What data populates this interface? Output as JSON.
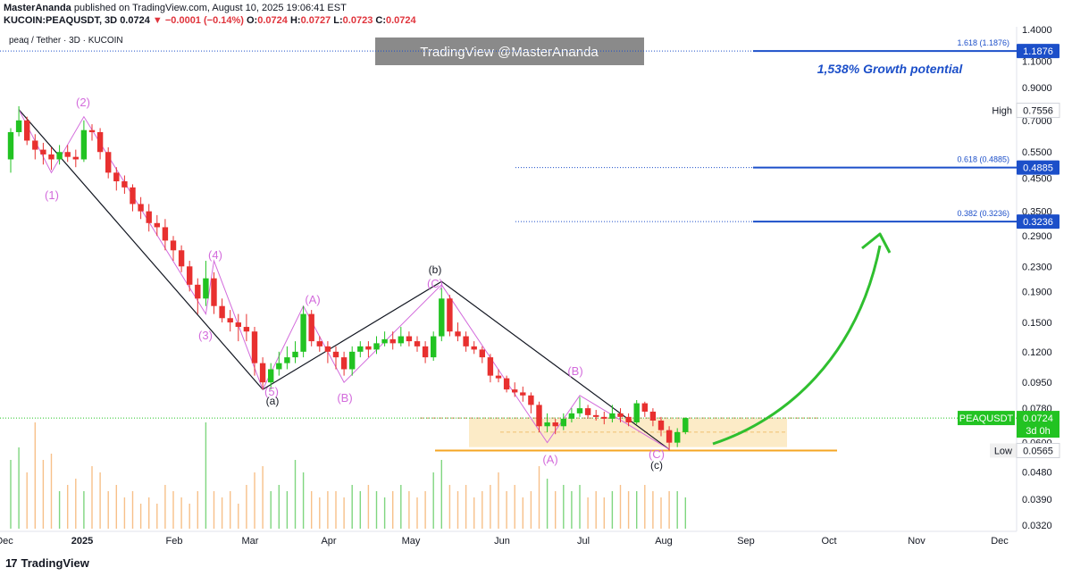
{
  "header": {
    "author": "MasterAnanda",
    "published_text": " published on TradingView.com, August 10, 2025 19:06:41 EST",
    "ticker_line": "KUCOIN:PEAQUSDT, 3D",
    "price": "0.0724",
    "change": "−0.0001 (−0.14%)",
    "o_label": "O:",
    "o_value": "0.0724",
    "h_label": "H:",
    "h_value": "0.0727",
    "l_label": "L:",
    "l_value": "0.0723",
    "c_label": "C:",
    "c_value": "0.0724"
  },
  "symbol_title": "peaq / Tether · 3D · KUCOIN",
  "watermark": "TradingView @MasterAnanda",
  "footer": {
    "brand": "TradingView"
  },
  "colors": {
    "up": "#22c322",
    "down": "#e8302f",
    "fib": "#1c4fc9",
    "wave": "#d36bdc",
    "arrow": "#2fbf2f",
    "zone": "#fbe7bd",
    "support": "#f5a623"
  },
  "chart_data": {
    "type": "candlestick",
    "scale": "log",
    "ylim": [
      0.032,
      1.4
    ],
    "y_ticks": [
      "1.4000",
      "1.1000",
      "0.9000",
      "0.7000",
      "0.5500",
      "0.4500",
      "0.3500",
      "0.2900",
      "0.2300",
      "0.1900",
      "0.1500",
      "0.1200",
      "0.0950",
      "0.0780",
      "0.0600",
      "0.0480",
      "0.0390",
      "0.0320"
    ],
    "x_ticks": [
      "Dec",
      "2025",
      "Feb",
      "Mar",
      "Apr",
      "May",
      "Jun",
      "Jul",
      "Aug",
      "Sep",
      "Oct",
      "Nov",
      "Dec"
    ],
    "fib_levels": [
      {
        "label": "1.618 (1.1876)",
        "value": 1.1876,
        "badge": "1.1876"
      },
      {
        "label": "0.618 (0.4885)",
        "value": 0.4885,
        "badge": "0.4885"
      },
      {
        "label": "0.382 (0.3236)",
        "value": 0.3236,
        "badge": "0.3236"
      }
    ],
    "high": {
      "label": "High",
      "value": "0.7556"
    },
    "low": {
      "label": "Low",
      "value": "0.0565"
    },
    "current": {
      "label": "PEAQUSDT",
      "value": "0.0724",
      "countdown": "3d 0h"
    },
    "growth_text": "1,538% Growth potential",
    "wave_labels": [
      "(1)",
      "(2)",
      "(3)",
      "(4)",
      "(5)",
      "(A)",
      "(B)",
      "(C)",
      "(A)",
      "(B)",
      "(C)"
    ],
    "abc_labels": [
      "(a)",
      "(b)",
      "(c)"
    ],
    "candles": [
      [
        0.52,
        0.64,
        0.66,
        0.47
      ],
      [
        0.64,
        0.7,
        0.78,
        0.62
      ],
      [
        0.7,
        0.6,
        0.72,
        0.58
      ],
      [
        0.6,
        0.56,
        0.63,
        0.52
      ],
      [
        0.56,
        0.54,
        0.59,
        0.5
      ],
      [
        0.54,
        0.52,
        0.57,
        0.48
      ],
      [
        0.52,
        0.55,
        0.58,
        0.5
      ],
      [
        0.55,
        0.53,
        0.58,
        0.51
      ],
      [
        0.53,
        0.52,
        0.56,
        0.49
      ],
      [
        0.52,
        0.65,
        0.7,
        0.51
      ],
      [
        0.65,
        0.64,
        0.68,
        0.6
      ],
      [
        0.64,
        0.55,
        0.66,
        0.52
      ],
      [
        0.55,
        0.47,
        0.57,
        0.45
      ],
      [
        0.47,
        0.44,
        0.49,
        0.41
      ],
      [
        0.44,
        0.42,
        0.46,
        0.4
      ],
      [
        0.42,
        0.37,
        0.43,
        0.35
      ],
      [
        0.37,
        0.35,
        0.39,
        0.33
      ],
      [
        0.35,
        0.32,
        0.37,
        0.3
      ],
      [
        0.32,
        0.31,
        0.34,
        0.29
      ],
      [
        0.31,
        0.28,
        0.33,
        0.26
      ],
      [
        0.28,
        0.26,
        0.29,
        0.24
      ],
      [
        0.26,
        0.23,
        0.27,
        0.22
      ],
      [
        0.23,
        0.2,
        0.24,
        0.19
      ],
      [
        0.2,
        0.18,
        0.21,
        0.16
      ],
      [
        0.18,
        0.21,
        0.24,
        0.17
      ],
      [
        0.21,
        0.17,
        0.22,
        0.16
      ],
      [
        0.17,
        0.155,
        0.18,
        0.15
      ],
      [
        0.155,
        0.15,
        0.165,
        0.14
      ],
      [
        0.15,
        0.145,
        0.16,
        0.13
      ],
      [
        0.145,
        0.14,
        0.16,
        0.13
      ],
      [
        0.14,
        0.11,
        0.145,
        0.1
      ],
      [
        0.11,
        0.095,
        0.115,
        0.09
      ],
      [
        0.095,
        0.105,
        0.11,
        0.09
      ],
      [
        0.105,
        0.11,
        0.12,
        0.1
      ],
      [
        0.11,
        0.115,
        0.125,
        0.105
      ],
      [
        0.115,
        0.12,
        0.13,
        0.11
      ],
      [
        0.12,
        0.16,
        0.17,
        0.115
      ],
      [
        0.16,
        0.13,
        0.165,
        0.125
      ],
      [
        0.13,
        0.125,
        0.135,
        0.12
      ],
      [
        0.125,
        0.12,
        0.13,
        0.11
      ],
      [
        0.12,
        0.115,
        0.125,
        0.105
      ],
      [
        0.115,
        0.105,
        0.12,
        0.1
      ],
      [
        0.105,
        0.12,
        0.125,
        0.1
      ],
      [
        0.12,
        0.125,
        0.13,
        0.115
      ],
      [
        0.125,
        0.122,
        0.13,
        0.115
      ],
      [
        0.122,
        0.128,
        0.135,
        0.118
      ],
      [
        0.128,
        0.132,
        0.14,
        0.125
      ],
      [
        0.132,
        0.128,
        0.14,
        0.122
      ],
      [
        0.128,
        0.135,
        0.145,
        0.125
      ],
      [
        0.135,
        0.13,
        0.14,
        0.125
      ],
      [
        0.13,
        0.125,
        0.135,
        0.12
      ],
      [
        0.125,
        0.115,
        0.13,
        0.11
      ],
      [
        0.115,
        0.135,
        0.14,
        0.112
      ],
      [
        0.135,
        0.18,
        0.195,
        0.13
      ],
      [
        0.18,
        0.14,
        0.185,
        0.135
      ],
      [
        0.14,
        0.135,
        0.15,
        0.13
      ],
      [
        0.135,
        0.125,
        0.14,
        0.12
      ],
      [
        0.125,
        0.122,
        0.13,
        0.118
      ],
      [
        0.122,
        0.115,
        0.125,
        0.11
      ],
      [
        0.115,
        0.1,
        0.118,
        0.095
      ],
      [
        0.1,
        0.098,
        0.105,
        0.095
      ],
      [
        0.098,
        0.09,
        0.1,
        0.088
      ],
      [
        0.09,
        0.088,
        0.095,
        0.085
      ],
      [
        0.088,
        0.086,
        0.092,
        0.082
      ],
      [
        0.086,
        0.08,
        0.088,
        0.075
      ],
      [
        0.08,
        0.068,
        0.082,
        0.065
      ],
      [
        0.068,
        0.07,
        0.075,
        0.065
      ],
      [
        0.07,
        0.068,
        0.072,
        0.064
      ],
      [
        0.068,
        0.072,
        0.075,
        0.066
      ],
      [
        0.072,
        0.075,
        0.078,
        0.07
      ],
      [
        0.075,
        0.078,
        0.085,
        0.073
      ],
      [
        0.078,
        0.074,
        0.08,
        0.072
      ],
      [
        0.074,
        0.073,
        0.077,
        0.071
      ],
      [
        0.073,
        0.072,
        0.076,
        0.069
      ],
      [
        0.072,
        0.075,
        0.08,
        0.07
      ],
      [
        0.075,
        0.073,
        0.078,
        0.07
      ],
      [
        0.073,
        0.07,
        0.075,
        0.068
      ],
      [
        0.07,
        0.081,
        0.083,
        0.069
      ],
      [
        0.081,
        0.076,
        0.082,
        0.073
      ],
      [
        0.076,
        0.071,
        0.078,
        0.068
      ],
      [
        0.071,
        0.066,
        0.073,
        0.063
      ],
      [
        0.066,
        0.06,
        0.068,
        0.0565
      ],
      [
        0.06,
        0.065,
        0.067,
        0.058
      ],
      [
        0.065,
        0.0724,
        0.0727,
        0.064
      ]
    ],
    "volumes": [
      0.55,
      0.65,
      0.45,
      0.85,
      0.55,
      0.6,
      0.3,
      0.35,
      0.4,
      0.3,
      0.5,
      0.45,
      0.3,
      0.35,
      0.25,
      0.3,
      0.2,
      0.25,
      0.2,
      0.35,
      0.3,
      0.25,
      0.2,
      0.3,
      0.85,
      0.3,
      0.25,
      0.3,
      0.2,
      0.35,
      0.45,
      0.5,
      0.3,
      0.35,
      0.3,
      0.55,
      0.45,
      0.3,
      0.25,
      0.3,
      0.3,
      0.25,
      0.35,
      0.3,
      0.35,
      0.3,
      0.25,
      0.3,
      0.35,
      0.3,
      0.25,
      0.3,
      0.45,
      0.55,
      0.35,
      0.3,
      0.35,
      0.25,
      0.3,
      0.35,
      0.45,
      0.3,
      0.35,
      0.25,
      0.3,
      0.5,
      0.4,
      0.3,
      0.35,
      0.3,
      0.35,
      0.25,
      0.3,
      0.25,
      0.3,
      0.35,
      0.3,
      0.3,
      0.35,
      0.3,
      0.25,
      0.3,
      0.3,
      0.25
    ]
  }
}
